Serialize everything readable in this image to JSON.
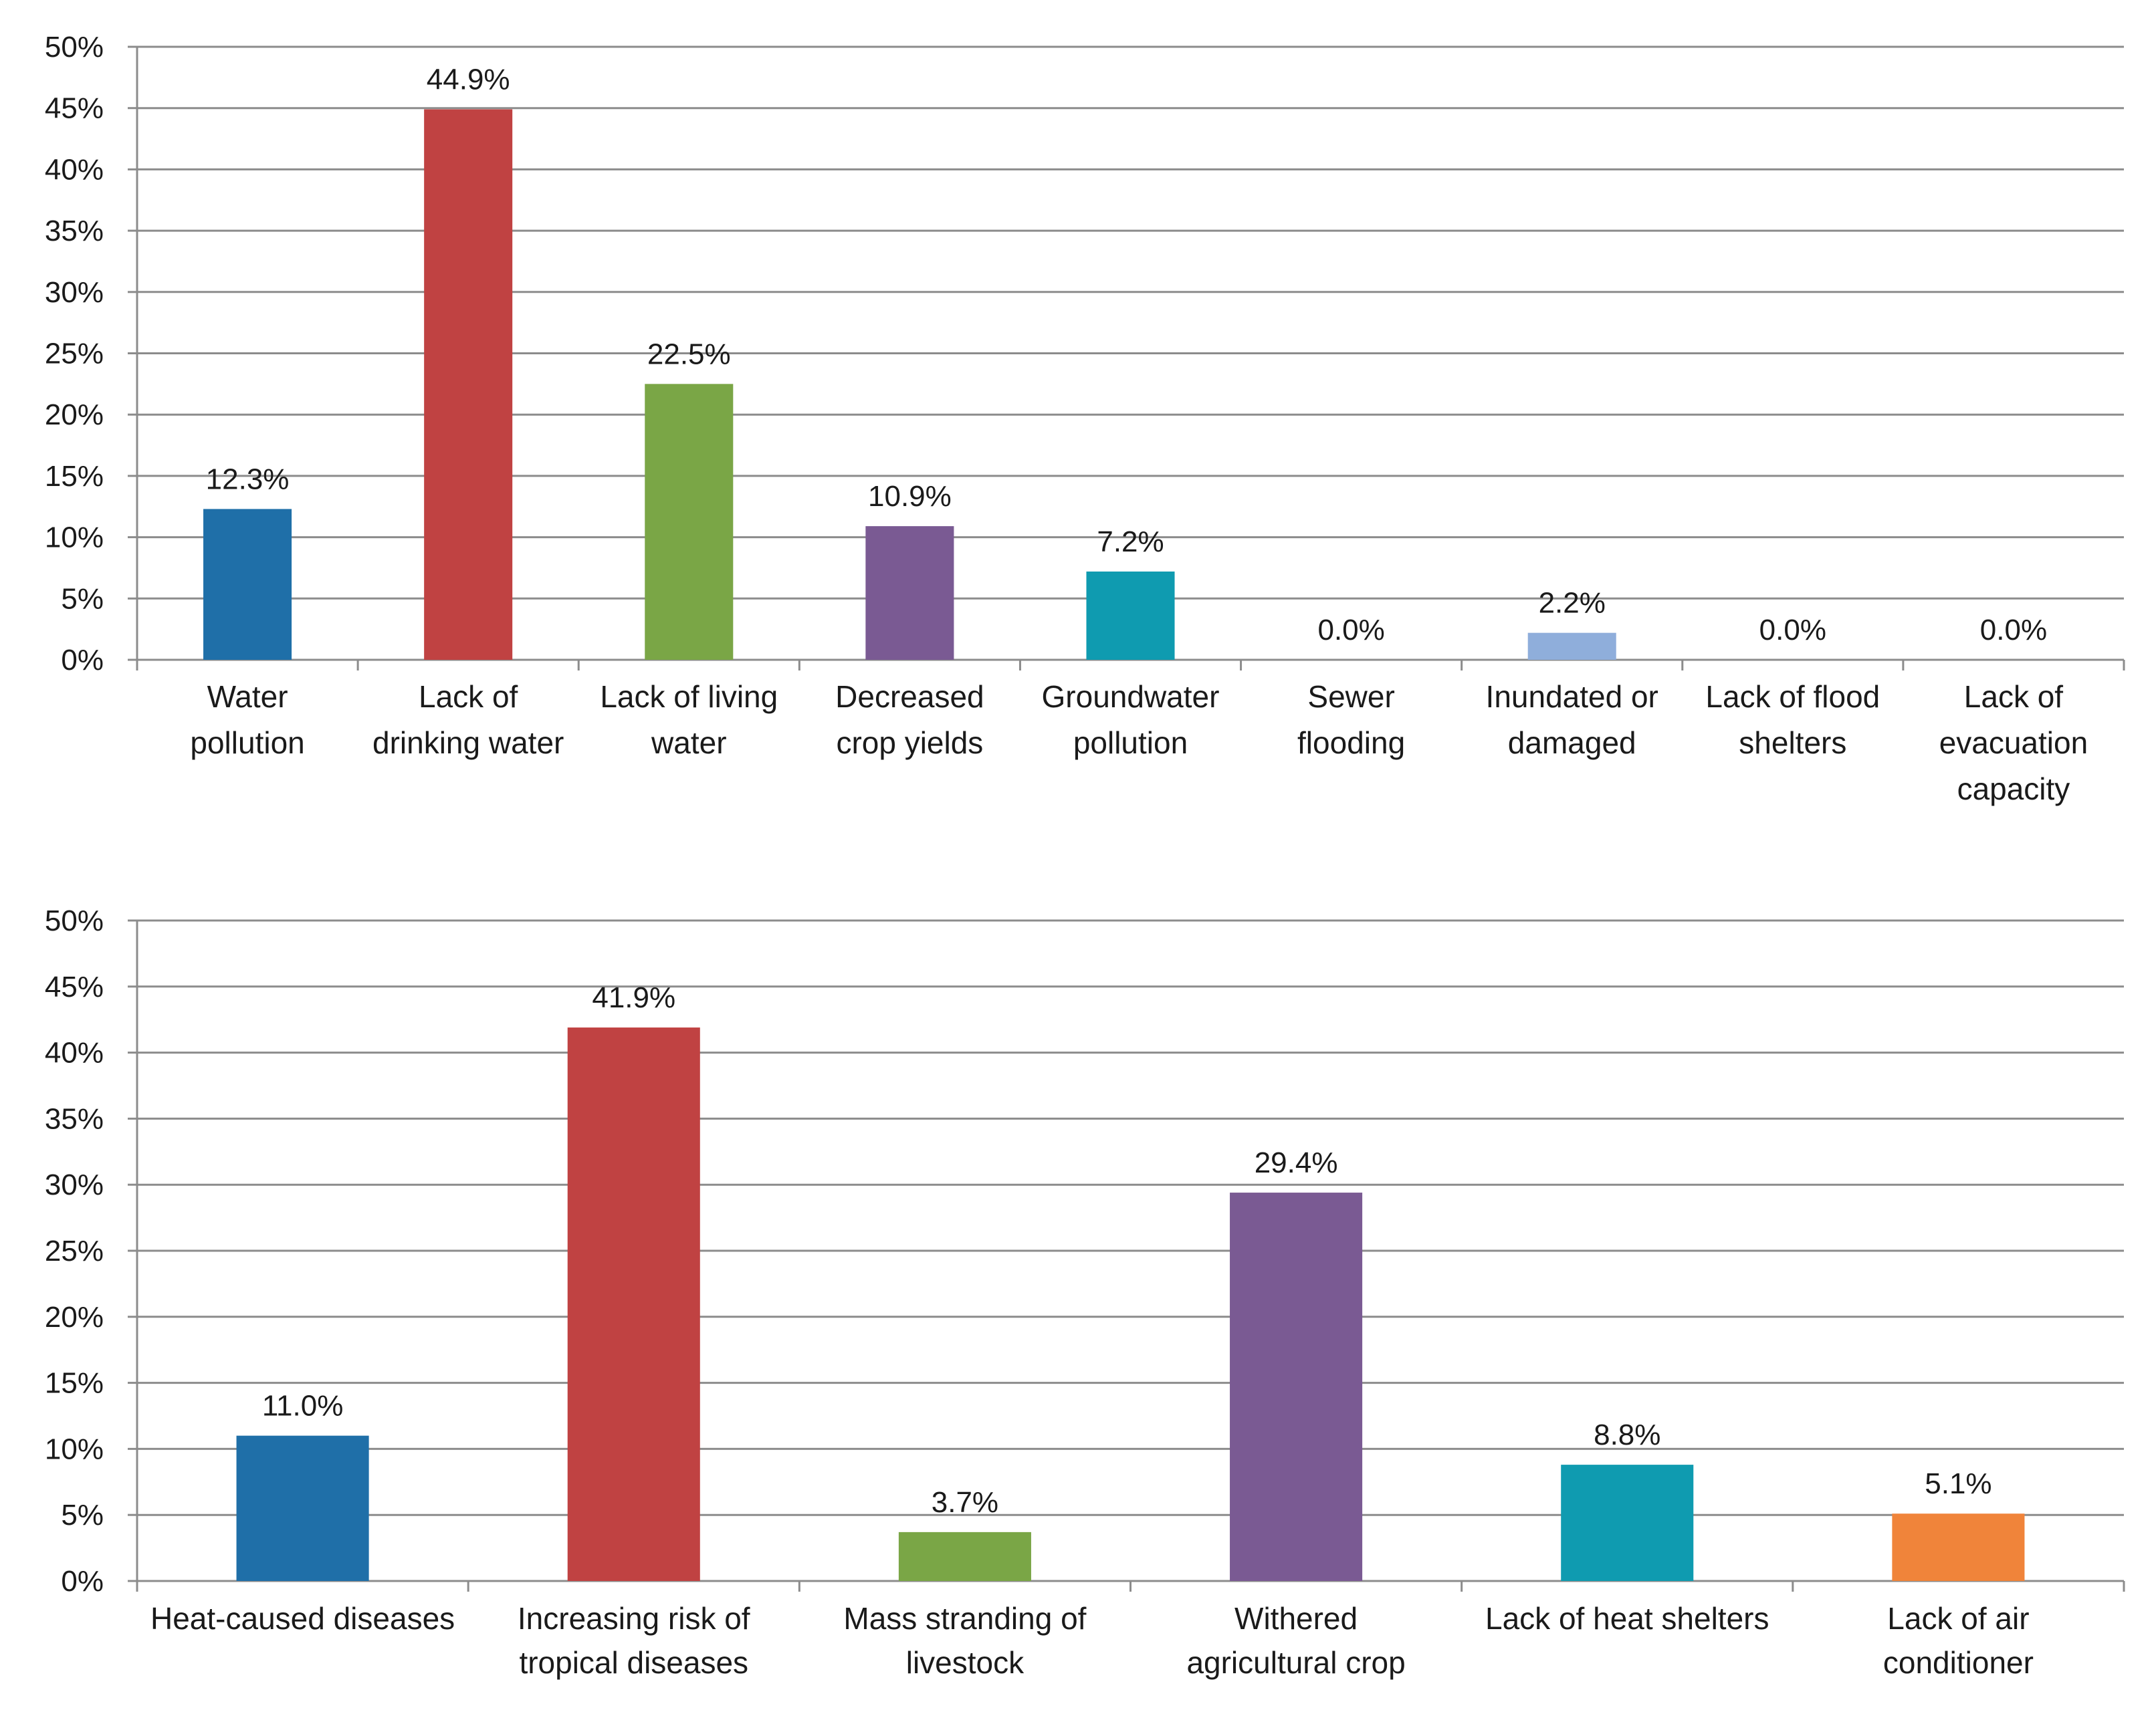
{
  "chart_data": [
    {
      "type": "bar",
      "title": "",
      "xlabel": "",
      "ylabel": "",
      "ylim": [
        0,
        50
      ],
      "yticks": [
        0,
        5,
        10,
        15,
        20,
        25,
        30,
        35,
        40,
        45,
        50
      ],
      "ytick_labels": [
        "0%",
        "5%",
        "10%",
        "15%",
        "20%",
        "25%",
        "30%",
        "35%",
        "40%",
        "45%",
        "50%"
      ],
      "grid": true,
      "categories": [
        [
          "Water",
          "pollution"
        ],
        [
          "Lack of",
          "drinking water"
        ],
        [
          "Lack of living",
          "water"
        ],
        [
          "Decreased",
          "crop yields"
        ],
        [
          "Groundwater",
          "pollution"
        ],
        [
          "Sewer",
          "flooding"
        ],
        [
          "Inundated or",
          "damaged"
        ],
        [
          "Lack of flood",
          "shelters"
        ],
        [
          "Lack of",
          "evacuation",
          "capacity"
        ]
      ],
      "values": [
        12.3,
        44.9,
        22.5,
        10.9,
        7.2,
        0.0,
        2.2,
        0.0,
        0.0
      ],
      "data_labels": [
        "12.3%",
        "44.9%",
        "22.5%",
        "10.9%",
        "7.2%",
        "0.0%",
        "2.2%",
        "0.0%",
        "0.0%"
      ],
      "colors": [
        "#1f6fa8",
        "#c04242",
        "#7aa646",
        "#7a5a93",
        "#0f9bb0",
        "#4f81bd",
        "#8faedb",
        "#4f81bd",
        "#4f81bd"
      ]
    },
    {
      "type": "bar",
      "title": "",
      "xlabel": "",
      "ylabel": "",
      "ylim": [
        0,
        50
      ],
      "yticks": [
        0,
        5,
        10,
        15,
        20,
        25,
        30,
        35,
        40,
        45,
        50
      ],
      "ytick_labels": [
        "0%",
        "5%",
        "10%",
        "15%",
        "20%",
        "25%",
        "30%",
        "35%",
        "40%",
        "45%",
        "50%"
      ],
      "grid": true,
      "categories": [
        [
          "Heat-caused diseases"
        ],
        [
          "Increasing risk of",
          "tropical diseases"
        ],
        [
          "Mass stranding of",
          "livestock"
        ],
        [
          "Withered",
          "agricultural crop"
        ],
        [
          "Lack of heat shelters"
        ],
        [
          "Lack of air",
          "conditioner"
        ]
      ],
      "values": [
        11.0,
        41.9,
        3.7,
        29.4,
        8.8,
        5.1
      ],
      "data_labels": [
        "11.0%",
        "41.9%",
        "3.7%",
        "29.4%",
        "8.8%",
        "5.1%"
      ],
      "colors": [
        "#1f6fa8",
        "#c04242",
        "#7aa646",
        "#7a5a93",
        "#0f9bb0",
        "#f0843a"
      ]
    }
  ]
}
